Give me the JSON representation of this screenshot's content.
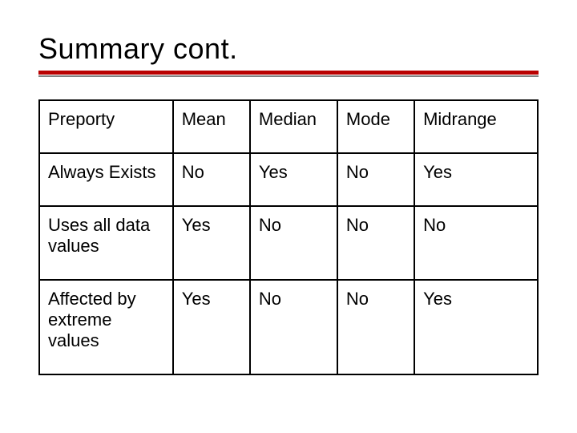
{
  "slide": {
    "title": "Summary cont.",
    "rule_color_primary": "#b90101",
    "rule_color_secondary": "#808080",
    "background_color": "#ffffff",
    "text_color": "#000000",
    "title_fontsize": 36,
    "cell_fontsize": 22
  },
  "table": {
    "type": "table",
    "border_color": "#000000",
    "border_width": 2,
    "column_widths_pct": [
      26,
      15,
      17,
      15,
      24
    ],
    "columns": [
      "Preporty",
      "Mean",
      "Median",
      "Mode",
      "Midrange"
    ],
    "rows": [
      [
        "Always Exists",
        "No",
        "Yes",
        "No",
        "Yes"
      ],
      [
        "Uses all data values",
        "Yes",
        "No",
        "No",
        "No"
      ],
      [
        "Affected by extreme values",
        "Yes",
        "No",
        "No",
        "Yes"
      ]
    ]
  }
}
